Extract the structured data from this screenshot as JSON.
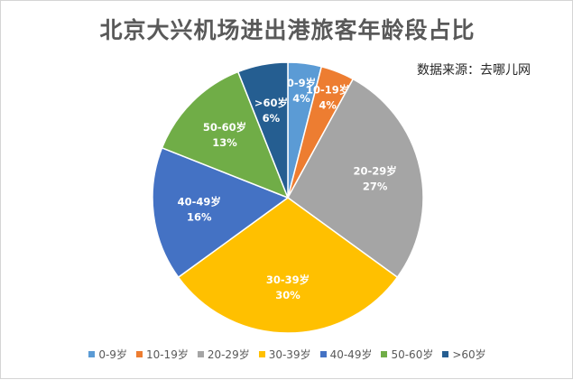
{
  "source_note": "数据来源：去哪儿网",
  "chart_data": {
    "type": "pie",
    "title": "北京大兴机场进出港旅客年龄段占比",
    "slices": [
      {
        "label": "0-9岁",
        "value": 4,
        "pct_label": "4%",
        "color": "#5B9BD5"
      },
      {
        "label": "10-19岁",
        "value": 4,
        "pct_label": "4%",
        "color": "#ED7D31"
      },
      {
        "label": "20-29岁",
        "value": 27,
        "pct_label": "27%",
        "color": "#A5A5A5"
      },
      {
        "label": "30-39岁",
        "value": 30,
        "pct_label": "30%",
        "color": "#FFC000"
      },
      {
        "label": "40-49岁",
        "value": 16,
        "pct_label": "16%",
        "color": "#4472C4"
      },
      {
        "label": "50-60岁",
        "value": 13,
        "pct_label": "13%",
        "color": "#70AD47"
      },
      {
        "label": ">60岁",
        "value": 6,
        "pct_label": "6%",
        "color": "#255E91"
      }
    ],
    "legend_position": "bottom"
  }
}
